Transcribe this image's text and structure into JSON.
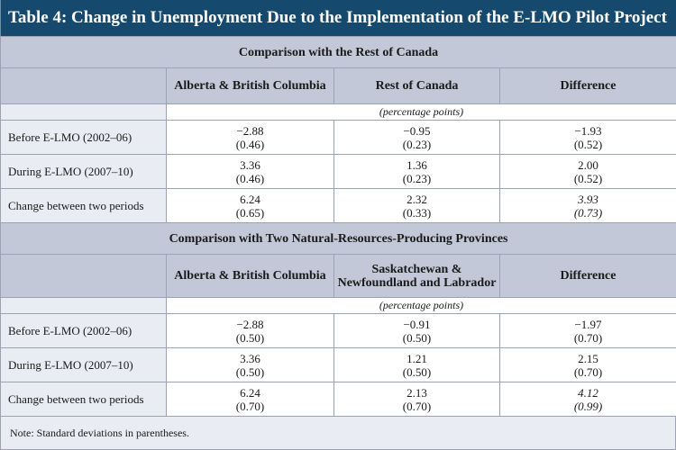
{
  "title": "Table 4: Change in Unemployment Due to the Implementation of the E-LMO Pilot Project",
  "section1": {
    "heading": "Comparison with the Rest of Canada",
    "col1": "Alberta & British Columbia",
    "col2": "Rest of Canada",
    "col3": "Difference",
    "units": "(percentage points)",
    "rows": [
      {
        "label": "Before E-LMO (2002–06)",
        "c1": {
          "v": "−2.88",
          "sd": "(0.46)"
        },
        "c2": {
          "v": "−0.95",
          "sd": "(0.23)"
        },
        "c3": {
          "v": "−1.93",
          "sd": "(0.52)"
        }
      },
      {
        "label": "During E-LMO (2007–10)",
        "c1": {
          "v": "3.36",
          "sd": "(0.46)"
        },
        "c2": {
          "v": "1.36",
          "sd": "(0.23)"
        },
        "c3": {
          "v": "2.00",
          "sd": "(0.52)"
        }
      },
      {
        "label": "Change between two periods",
        "c1": {
          "v": "6.24",
          "sd": "(0.65)"
        },
        "c2": {
          "v": "2.32",
          "sd": "(0.33)"
        },
        "c3": {
          "v": "3.93",
          "sd": "(0.73)"
        }
      }
    ]
  },
  "section2": {
    "heading": "Comparison with Two Natural-Resources-Producing Provinces",
    "col1": "Alberta & British Columbia",
    "col2_line1": "Saskatchewan &",
    "col2_line2": "Newfoundland and Labrador",
    "col3": "Difference",
    "units": "(percentage points)",
    "rows": [
      {
        "label": "Before E-LMO (2002–06)",
        "c1": {
          "v": "−2.88",
          "sd": "(0.50)"
        },
        "c2": {
          "v": "−0.91",
          "sd": "(0.50)"
        },
        "c3": {
          "v": "−1.97",
          "sd": "(0.70)"
        }
      },
      {
        "label": "During E-LMO (2007–10)",
        "c1": {
          "v": "3.36",
          "sd": "(0.50)"
        },
        "c2": {
          "v": "1.21",
          "sd": "(0.50)"
        },
        "c3": {
          "v": "2.15",
          "sd": "(0.70)"
        }
      },
      {
        "label": "Change between two periods",
        "c1": {
          "v": "6.24",
          "sd": "(0.70)"
        },
        "c2": {
          "v": "2.13",
          "sd": "(0.70)"
        },
        "c3": {
          "v": "4.12",
          "sd": "(0.99)"
        }
      }
    ]
  },
  "note": "Note: Standard deviations in parentheses.",
  "colors": {
    "title_bg": "#154a6e",
    "header_bg": "#c2c8d8",
    "label_bg": "#e9ecf2"
  }
}
